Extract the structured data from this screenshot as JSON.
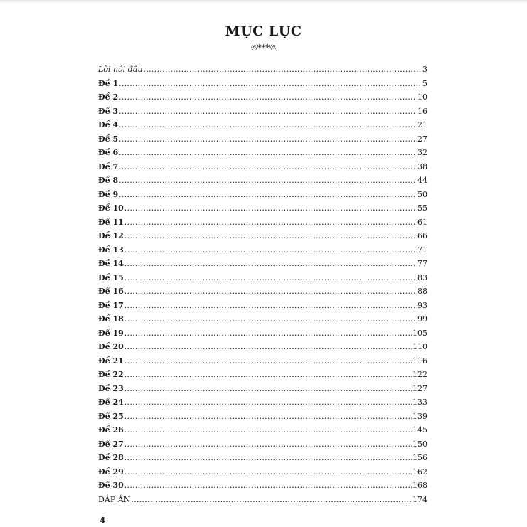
{
  "title": "MỤC LỤC",
  "ornament": "ঙ***ঙ",
  "toc": [
    {
      "label": "Lời nói đầu",
      "page": "3",
      "style": "italic"
    },
    {
      "label": "Đề 1",
      "page": "5",
      "style": "bold"
    },
    {
      "label": "Đề 2",
      "page": "10",
      "style": "bold"
    },
    {
      "label": "Đề 3",
      "page": "16",
      "style": "bold"
    },
    {
      "label": "Đề 4",
      "page": "21",
      "style": "bold"
    },
    {
      "label": "Đề 5",
      "page": "27",
      "style": "bold"
    },
    {
      "label": "Đề 6",
      "page": "32",
      "style": "bold"
    },
    {
      "label": "Đề 7",
      "page": "38",
      "style": "bold"
    },
    {
      "label": "Đề 8",
      "page": "44",
      "style": "bold"
    },
    {
      "label": "Đề 9",
      "page": "50",
      "style": "bold"
    },
    {
      "label": "Đề 10",
      "page": "55",
      "style": "bold"
    },
    {
      "label": "Đề 11",
      "page": "61",
      "style": "bold"
    },
    {
      "label": "Đề 12",
      "page": "66",
      "style": "bold"
    },
    {
      "label": "Đề 13",
      "page": "71",
      "style": "bold"
    },
    {
      "label": "Đề 14",
      "page": "77",
      "style": "bold"
    },
    {
      "label": "Đề 15",
      "page": "83",
      "style": "bold"
    },
    {
      "label": "Đề 16",
      "page": "88",
      "style": "bold"
    },
    {
      "label": "Đề 17",
      "page": "93",
      "style": "bold"
    },
    {
      "label": "Đề 18",
      "page": "99",
      "style": "bold"
    },
    {
      "label": "Đề 19",
      "page": "105",
      "style": "bold"
    },
    {
      "label": "Đề 20",
      "page": "110",
      "style": "bold"
    },
    {
      "label": "Đề 21",
      "page": "116",
      "style": "bold"
    },
    {
      "label": "Đề 22",
      "page": "122",
      "style": "bold"
    },
    {
      "label": "Đề 23",
      "page": "127",
      "style": "bold"
    },
    {
      "label": "Đề 24",
      "page": "133",
      "style": "bold"
    },
    {
      "label": "Đề 25",
      "page": "139",
      "style": "bold"
    },
    {
      "label": "Đề 26",
      "page": "145",
      "style": "bold"
    },
    {
      "label": "Đề 27",
      "page": "150",
      "style": "bold"
    },
    {
      "label": "Đề 28",
      "page": "156",
      "style": "bold"
    },
    {
      "label": "Đề 29",
      "page": "162",
      "style": "bold"
    },
    {
      "label": "Đề 30",
      "page": "168",
      "style": "bold"
    },
    {
      "label": "ĐÁP ÁN",
      "page": "174",
      "style": "normal"
    }
  ],
  "page_number": "4"
}
